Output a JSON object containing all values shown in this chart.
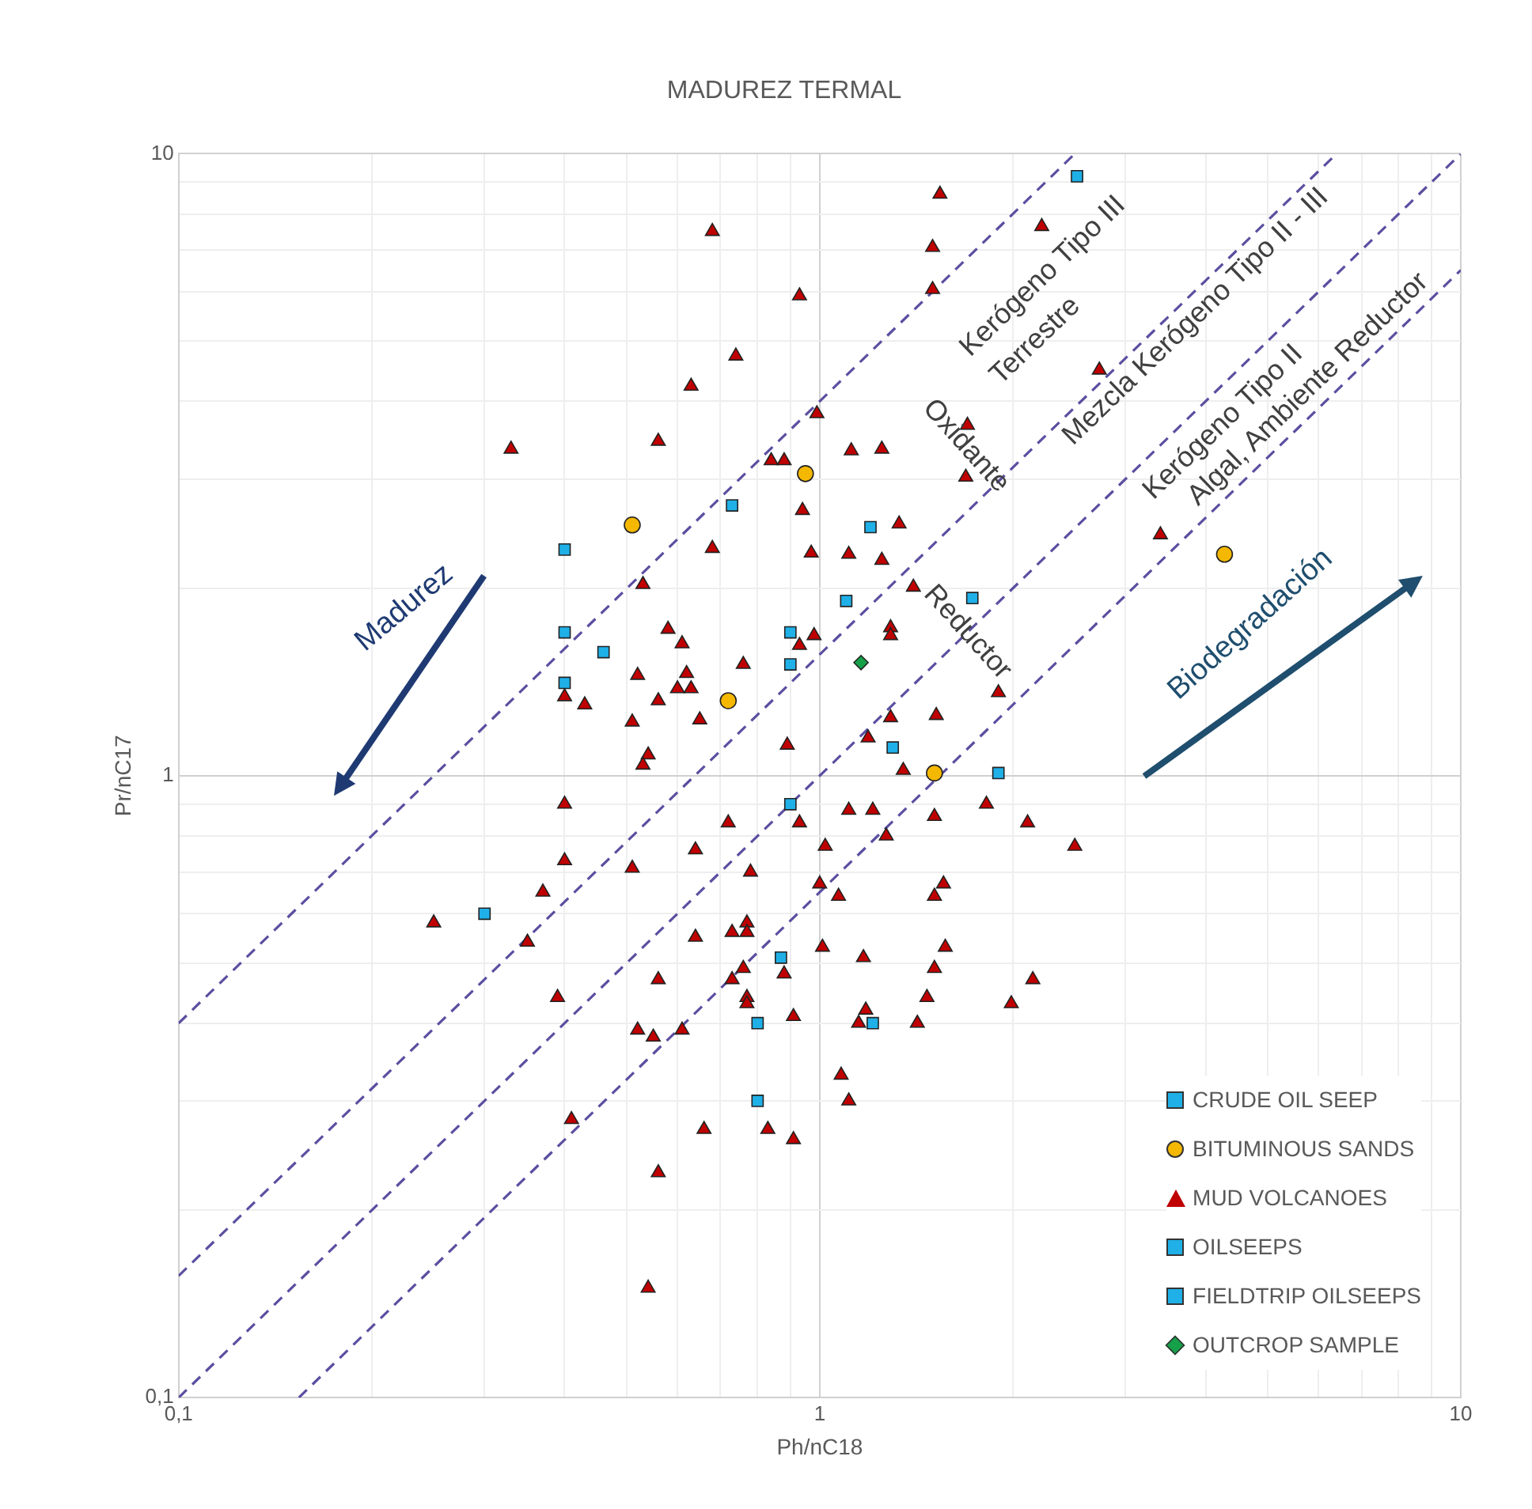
{
  "chart_data": {
    "type": "scatter",
    "title": "MADUREZ TERMAL",
    "xlabel": "Ph/nC18",
    "ylabel": "Pr/nC17",
    "log": "xy",
    "xlim": [
      0.1,
      10
    ],
    "ylim": [
      0.1,
      10
    ],
    "xticks": [
      {
        "value": 0.1,
        "label": "0,1"
      },
      {
        "value": 0.2,
        "label": null
      },
      {
        "value": 0.3,
        "label": null
      },
      {
        "value": 0.4,
        "label": null
      },
      {
        "value": 0.5,
        "label": null
      },
      {
        "value": 0.6,
        "label": null
      },
      {
        "value": 0.7,
        "label": null
      },
      {
        "value": 0.8,
        "label": null
      },
      {
        "value": 0.9,
        "label": null
      },
      1,
      {
        "value": 2,
        "label": null
      },
      {
        "value": 3,
        "label": null
      },
      {
        "value": 4,
        "label": null
      },
      {
        "value": 5,
        "label": null
      },
      {
        "value": 6,
        "label": null
      },
      {
        "value": 7,
        "label": null
      },
      {
        "value": 8,
        "label": null
      },
      {
        "value": 9,
        "label": null
      },
      10
    ],
    "yticks": [
      {
        "value": 0.1,
        "label": "0,1"
      },
      {
        "value": 0.2,
        "label": null
      },
      {
        "value": 0.3,
        "label": null
      },
      {
        "value": 0.4,
        "label": null
      },
      {
        "value": 0.5,
        "label": null
      },
      {
        "value": 0.6,
        "label": null
      },
      {
        "value": 0.7,
        "label": null
      },
      {
        "value": 0.8,
        "label": null
      },
      {
        "value": 0.9,
        "label": null
      },
      1,
      {
        "value": 2,
        "label": null
      },
      {
        "value": 3,
        "label": null
      },
      {
        "value": 4,
        "label": null
      },
      {
        "value": 5,
        "label": null
      },
      {
        "value": 6,
        "label": null
      },
      {
        "value": 7,
        "label": null
      },
      {
        "value": 8,
        "label": null
      },
      {
        "value": 9,
        "label": null
      },
      10
    ],
    "grid": true,
    "legend": "bottom right",
    "series": [
      {
        "name": "CRUDE OIL SEEP",
        "color": "#1fb0e8",
        "marker": "square",
        "x": [
          2.52,
          0.4,
          0.73,
          1.2,
          1.1,
          1.3,
          1.9
        ],
        "values": [
          9.2,
          2.31,
          2.72,
          2.51,
          1.91,
          1.11,
          1.01
        ]
      },
      {
        "name": "BITUMINOUS SANDS",
        "color": "#f5b800",
        "marker": "circle",
        "x": [
          0.51,
          0.95,
          0.72,
          1.51,
          4.28
        ],
        "values": [
          2.53,
          3.06,
          1.32,
          1.01,
          2.27
        ]
      },
      {
        "name": "MUD VOLCANOES",
        "color": "#c00000",
        "marker": "triangle",
        "x": [
          1.54,
          0.68,
          2.22,
          1.5,
          0.93,
          1.5,
          0.74,
          0.63,
          2.73,
          0.99,
          0.33,
          0.56,
          0.84,
          0.88,
          1.12,
          1.25,
          1.7,
          1.69,
          0.94,
          1.33,
          0.68,
          0.97,
          1.11,
          1.25,
          0.53,
          1.4,
          0.58,
          0.61,
          0.98,
          0.93,
          1.29,
          1.29,
          0.76,
          0.52,
          0.62,
          0.6,
          0.63,
          0.4,
          0.43,
          0.56,
          1.9,
          0.51,
          0.65,
          1.29,
          1.52,
          0.89,
          1.19,
          0.54,
          0.53,
          1.35,
          3.4,
          0.4,
          0.72,
          0.93,
          1.11,
          1.21,
          1.51,
          1.82,
          2.11,
          2.5,
          0.4,
          0.64,
          0.51,
          0.78,
          1.02,
          1.27,
          0.37,
          1.0,
          1.07,
          1.56,
          1.51,
          0.25,
          0.35,
          0.64,
          0.73,
          0.77,
          0.77,
          1.01,
          1.17,
          1.57,
          1.51,
          0.76,
          0.73,
          0.88,
          0.56,
          2.15,
          0.39,
          0.77,
          0.77,
          1.47,
          1.99,
          0.91,
          1.18,
          1.15,
          1.42,
          0.52,
          0.55,
          0.61,
          1.08,
          1.11,
          0.41,
          0.66,
          0.83,
          0.91,
          0.56,
          0.54
        ],
        "values": [
          8.61,
          7.5,
          7.64,
          7.07,
          5.91,
          6.05,
          4.73,
          4.23,
          4.49,
          3.82,
          3.35,
          3.45,
          3.21,
          3.21,
          3.33,
          3.35,
          3.66,
          3.02,
          2.67,
          2.54,
          2.32,
          2.28,
          2.27,
          2.22,
          2.03,
          2.01,
          1.72,
          1.63,
          1.68,
          1.62,
          1.73,
          1.68,
          1.51,
          1.45,
          1.46,
          1.38,
          1.38,
          1.34,
          1.3,
          1.32,
          1.36,
          1.22,
          1.23,
          1.24,
          1.25,
          1.12,
          1.15,
          1.08,
          1.04,
          1.02,
          2.44,
          0.9,
          0.84,
          0.84,
          0.88,
          0.88,
          0.86,
          0.9,
          0.84,
          0.77,
          0.73,
          0.76,
          0.71,
          0.7,
          0.77,
          0.8,
          0.65,
          0.67,
          0.64,
          0.67,
          0.64,
          0.58,
          0.54,
          0.55,
          0.56,
          0.58,
          0.56,
          0.53,
          0.51,
          0.53,
          0.49,
          0.49,
          0.47,
          0.48,
          0.47,
          0.47,
          0.44,
          0.44,
          0.43,
          0.44,
          0.43,
          0.41,
          0.42,
          0.4,
          0.4,
          0.39,
          0.38,
          0.39,
          0.33,
          0.3,
          0.28,
          0.27,
          0.27,
          0.26,
          0.23,
          0.15
        ]
      },
      {
        "name": "OILSEEPS",
        "color": "#1fb0e8",
        "marker": "square",
        "x": [
          0.4,
          0.46,
          0.4,
          0.9,
          0.9,
          0.3,
          0.8,
          0.8,
          0.87,
          1.21
        ],
        "values": [
          1.7,
          1.58,
          1.41,
          1.7,
          1.51,
          0.6,
          0.4,
          0.3,
          0.51,
          0.4
        ]
      },
      {
        "name": "FIELDTRIP OILSEEPS",
        "color": "#1fb0e8",
        "marker": "square",
        "x": [
          1.73,
          0.9
        ],
        "values": [
          1.93,
          0.9
        ]
      },
      {
        "name": "OUTCROP SAMPLE",
        "color": "#16a04a",
        "marker": "diamond",
        "x": [
          1.16
        ],
        "values": [
          1.52
        ]
      },
      {
        "type": "line",
        "color": "#5a4fa0",
        "line_style": "dashed",
        "marker": "none",
        "x": [
          0.1,
          2.5
        ],
        "values": [
          0.4,
          10
        ]
      },
      {
        "type": "line",
        "color": "#5a4fa0",
        "line_style": "dashed",
        "marker": "none",
        "x": [
          0.1,
          6.4
        ],
        "values": [
          0.157,
          10
        ]
      },
      {
        "type": "line",
        "color": "#5a4fa0",
        "line_style": "dashed",
        "marker": "none",
        "x": [
          0.1,
          10
        ],
        "values": [
          0.1,
          10
        ]
      },
      {
        "type": "line",
        "color": "#5a4fa0",
        "line_style": "dashed",
        "marker": "none",
        "x": [
          0.154,
          10
        ],
        "values": [
          0.1,
          6.5
        ]
      }
    ],
    "annotations": [
      "Kerógeno Tipo III",
      "Terrestre",
      "Oxidante",
      "Reductor",
      "Mezcla Kerógeno Tipo II - III",
      "Kerógeno Tipo II",
      "Algal, Ambiente Reductor",
      "Madurez",
      "Biodegradación"
    ]
  }
}
